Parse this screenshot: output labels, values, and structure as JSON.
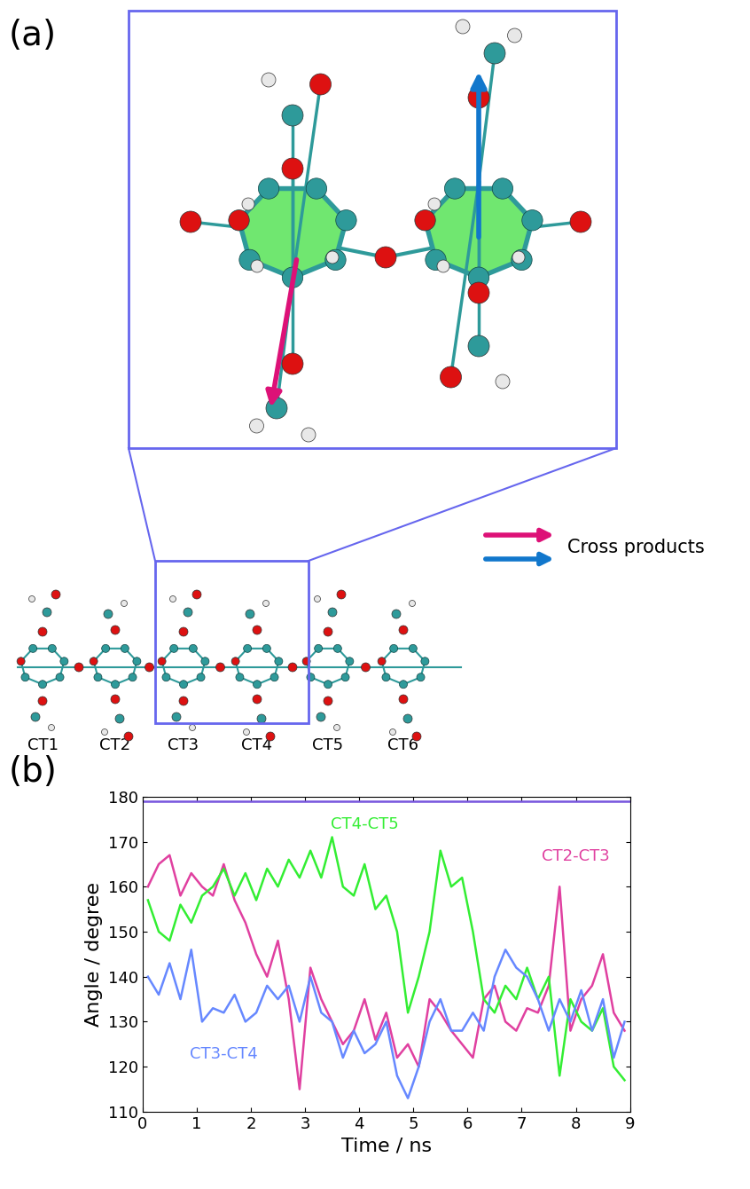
{
  "panel_a": {
    "label": "(a)",
    "residues": [
      "CT1",
      "CT2",
      "CT3",
      "CT4",
      "CT5",
      "CT6"
    ],
    "arrow_label": "Cross products"
  },
  "chart_data": {
    "type": "line",
    "title": "(b)",
    "x_label": "Time / ns",
    "y_label": "Angle / degree",
    "x": [
      0.1,
      0.3,
      0.5,
      0.7,
      0.9,
      1.1,
      1.3,
      1.5,
      1.7,
      1.9,
      2.1,
      2.3,
      2.5,
      2.7,
      2.9,
      3.1,
      3.3,
      3.5,
      3.7,
      3.9,
      4.1,
      4.3,
      4.5,
      4.7,
      4.9,
      5.1,
      5.3,
      5.5,
      5.7,
      5.9,
      6.1,
      6.3,
      6.5,
      6.7,
      6.9,
      7.1,
      7.3,
      7.5,
      7.7,
      7.9,
      8.1,
      8.3,
      8.5,
      8.7,
      8.9
    ],
    "series": [
      {
        "name": "CT2-CT3",
        "color": "#e040a0",
        "values": [
          160,
          165,
          167,
          158,
          163,
          160,
          158,
          165,
          157,
          152,
          145,
          140,
          148,
          135,
          115,
          142,
          135,
          130,
          125,
          128,
          135,
          126,
          132,
          122,
          125,
          120,
          135,
          132,
          128,
          125,
          122,
          135,
          138,
          130,
          128,
          133,
          132,
          138,
          160,
          128,
          135,
          138,
          145,
          132,
          128
        ]
      },
      {
        "name": "CT4-CT5",
        "color": "#33ee33",
        "values": [
          157,
          150,
          148,
          156,
          152,
          158,
          160,
          164,
          158,
          163,
          157,
          164,
          160,
          166,
          162,
          168,
          162,
          171,
          160,
          158,
          165,
          155,
          158,
          150,
          132,
          140,
          150,
          168,
          160,
          162,
          150,
          135,
          132,
          138,
          135,
          142,
          135,
          140,
          118,
          135,
          130,
          128,
          133,
          120,
          117
        ]
      },
      {
        "name": "CT3-CT4",
        "color": "#6688ff",
        "values": [
          140,
          136,
          143,
          135,
          146,
          130,
          133,
          132,
          136,
          130,
          132,
          138,
          135,
          138,
          130,
          140,
          132,
          130,
          122,
          128,
          123,
          125,
          130,
          118,
          113,
          120,
          130,
          135,
          128,
          128,
          132,
          128,
          140,
          146,
          142,
          140,
          135,
          128,
          135,
          130,
          137,
          128,
          135,
          122,
          130
        ]
      },
      {
        "color": "#7755dd",
        "x": [
          0,
          9
        ],
        "values": [
          179,
          179
        ]
      }
    ],
    "xlim": [
      0,
      9
    ],
    "xticks": [
      0,
      1,
      2,
      3,
      4,
      5,
      6,
      7,
      8,
      9
    ],
    "ylim": [
      110,
      180
    ],
    "yticks": [
      110,
      120,
      130,
      140,
      150,
      160,
      170,
      180
    ]
  }
}
